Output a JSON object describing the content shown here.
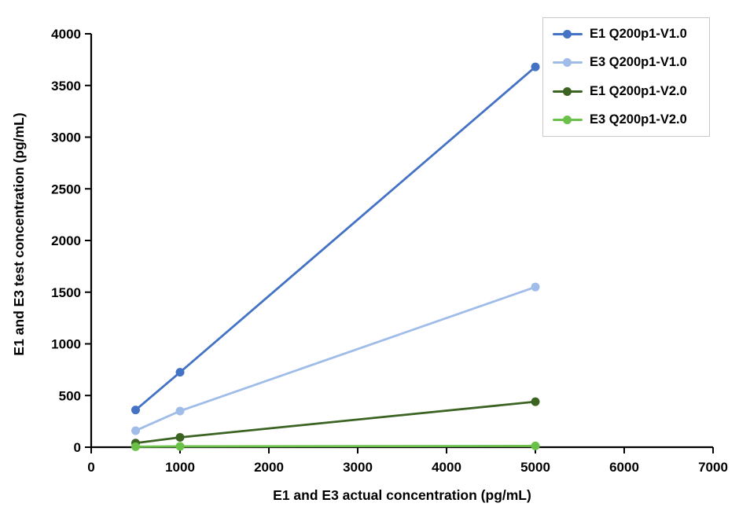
{
  "chart_data": {
    "type": "line",
    "title": "",
    "xlabel": "E1 and E3 actual concentration (pg/mL)",
    "ylabel": "E1 and E3 test concentration  (pg/mL)",
    "xlim": [
      0,
      7000
    ],
    "ylim": [
      0,
      4000
    ],
    "xticks": [
      0,
      1000,
      2000,
      3000,
      4000,
      5000,
      6000,
      7000
    ],
    "yticks": [
      0,
      500,
      1000,
      1500,
      2000,
      2500,
      3000,
      3500,
      4000
    ],
    "grid": false,
    "legend_position": "top-right-inside",
    "x": [
      500,
      1000,
      5000
    ],
    "series": [
      {
        "name": "E1 Q200p1-V1.0",
        "color": "#4472C4",
        "values": [
          360,
          725,
          3680
        ]
      },
      {
        "name": "E3 Q200p1-V1.0",
        "color": "#A0BCE8",
        "values": [
          160,
          350,
          1550
        ]
      },
      {
        "name": "E1 Q200p1-V2.0",
        "color": "#3B6322",
        "values": [
          40,
          95,
          440
        ]
      },
      {
        "name": "E3 Q200p1-V2.0",
        "color": "#6BC04A",
        "values": [
          5,
          8,
          12
        ]
      }
    ],
    "axis_color": "#000000",
    "background": "#FFFFFF"
  }
}
